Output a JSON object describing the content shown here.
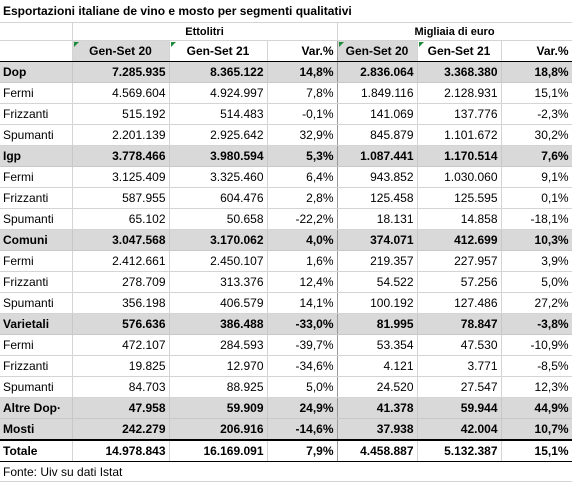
{
  "title": "Esportazioni italiane de vino e mosto per segmenti qualitativi",
  "units": {
    "volume": "Ettolitri",
    "value": "Migliaia di euro"
  },
  "headers": [
    "Gen-Set 20",
    "Gen-Set 21",
    "Var.%",
    "Gen-Set 20",
    "Gen-Set 21",
    "Var.%"
  ],
  "rows": [
    {
      "type": "group",
      "label": "Dop",
      "values": [
        "7.285.935",
        "8.365.122",
        "14,8%",
        "2.836.064",
        "3.368.380",
        "18,8%"
      ]
    },
    {
      "type": "item",
      "label": "Fermi",
      "values": [
        "4.569.604",
        "4.924.997",
        "7,8%",
        "1.849.116",
        "2.128.931",
        "15,1%"
      ]
    },
    {
      "type": "item",
      "label": "Frizzanti",
      "values": [
        "515.192",
        "514.483",
        "-0,1%",
        "141.069",
        "137.776",
        "-2,3%"
      ]
    },
    {
      "type": "item",
      "label": "Spumanti",
      "values": [
        "2.201.139",
        "2.925.642",
        "32,9%",
        "845.879",
        "1.101.672",
        "30,2%"
      ]
    },
    {
      "type": "group",
      "label": "Igp",
      "values": [
        "3.778.466",
        "3.980.594",
        "5,3%",
        "1.087.441",
        "1.170.514",
        "7,6%"
      ]
    },
    {
      "type": "item",
      "label": "Fermi",
      "values": [
        "3.125.409",
        "3.325.460",
        "6,4%",
        "943.852",
        "1.030.060",
        "9,1%"
      ]
    },
    {
      "type": "item",
      "label": "Frizzanti",
      "values": [
        "587.955",
        "604.476",
        "2,8%",
        "125.458",
        "125.595",
        "0,1%"
      ]
    },
    {
      "type": "item",
      "label": "Spumanti",
      "values": [
        "65.102",
        "50.658",
        "-22,2%",
        "18.131",
        "14.858",
        "-18,1%"
      ]
    },
    {
      "type": "group",
      "label": "Comuni",
      "values": [
        "3.047.568",
        "3.170.062",
        "4,0%",
        "374.071",
        "412.699",
        "10,3%"
      ]
    },
    {
      "type": "item",
      "label": "Fermi",
      "values": [
        "2.412.661",
        "2.450.107",
        "1,6%",
        "219.357",
        "227.957",
        "3,9%"
      ]
    },
    {
      "type": "item",
      "label": "Frizzanti",
      "values": [
        "278.709",
        "313.376",
        "12,4%",
        "54.522",
        "57.256",
        "5,0%"
      ]
    },
    {
      "type": "item",
      "label": "Spumanti",
      "values": [
        "356.198",
        "406.579",
        "14,1%",
        "100.192",
        "127.486",
        "27,2%"
      ]
    },
    {
      "type": "group",
      "label": "Varietali",
      "values": [
        "576.636",
        "386.488",
        "-33,0%",
        "81.995",
        "78.847",
        "-3,8%"
      ]
    },
    {
      "type": "item",
      "label": "Fermi",
      "values": [
        "472.107",
        "284.593",
        "-39,7%",
        "53.354",
        "47.530",
        "-10,9%"
      ]
    },
    {
      "type": "item",
      "label": "Frizzanti",
      "values": [
        "19.825",
        "12.970",
        "-34,6%",
        "4.121",
        "3.771",
        "-8,5%"
      ]
    },
    {
      "type": "item",
      "label": "Spumanti",
      "values": [
        "84.703",
        "88.925",
        "5,0%",
        "24.520",
        "27.547",
        "12,3%"
      ]
    },
    {
      "type": "group",
      "label": "Altre Dop·",
      "values": [
        "47.958",
        "59.909",
        "24,9%",
        "41.378",
        "59.944",
        "44,9%"
      ]
    },
    {
      "type": "group",
      "label": "Mosti",
      "values": [
        "242.279",
        "206.916",
        "-14,6%",
        "37.938",
        "42.004",
        "10,7%"
      ]
    }
  ],
  "total": {
    "label": "Totale",
    "values": [
      "14.978.843",
      "16.169.091",
      "7,9%",
      "4.458.887",
      "5.132.387",
      "15,1%"
    ]
  },
  "source": "Fonte: Uiv su dati Istat"
}
